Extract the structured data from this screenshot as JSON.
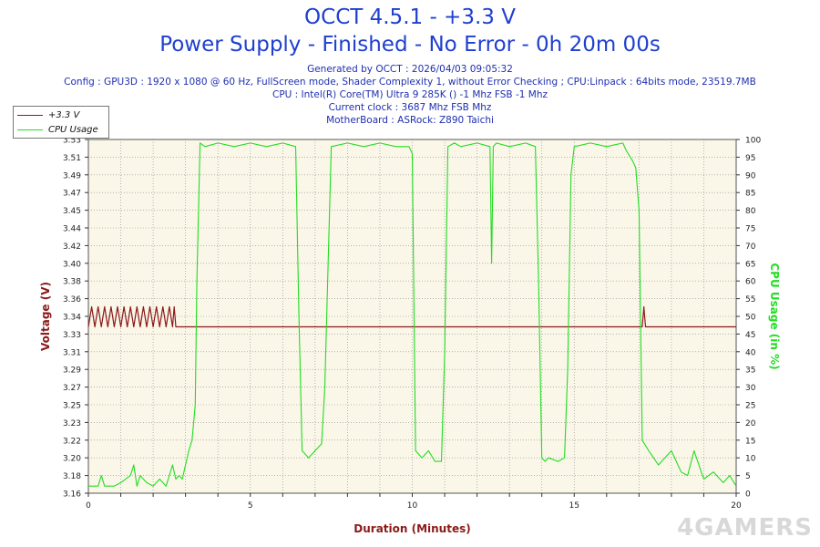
{
  "header": {
    "title": "OCCT 4.5.1 - +3.3 V",
    "subtitle": "Power Supply - Finished - No Error - 0h 20m 00s",
    "info_lines": [
      "Generated by OCCT : 2026/04/03 09:05:32",
      "Config : GPU3D : 1920 x 1080 @ 60 Hz, FullScreen mode, Shader Complexity 1, without Error Checking ; CPU:Linpack : 64bits mode, 23519.7MB",
      "CPU : Intel(R) Core(TM) Ultra 9 285K () -1 Mhz FSB -1 Mhz",
      "Current clock : 3687 Mhz FSB  Mhz",
      "MotherBoard : ASRock: Z890 Taichi"
    ]
  },
  "watermark": "4GAMERS",
  "colors": {
    "voltage": "#8b1a1a",
    "cpu": "#22dd22",
    "plot_bg": "#faf6e8",
    "grid": "#8a8a8a",
    "axis_text": "#222222"
  },
  "chart_data": {
    "type": "line",
    "xlabel": "Duration (Minutes)",
    "ylabel_left": "Voltage (V)",
    "ylabel_right": "CPU Usage (in %)",
    "xlim": [
      0,
      20
    ],
    "ylim_left": [
      3.16,
      3.53
    ],
    "ylim_right": [
      0,
      100
    ],
    "x_ticks": [
      0,
      5,
      10,
      15,
      20
    ],
    "y_left_ticks": [
      "3.16",
      "3.18",
      "3.20",
      "3.22",
      "3.23",
      "3.25",
      "3.27",
      "3.29",
      "3.31",
      "3.33",
      "3.34",
      "3.36",
      "3.38",
      "3.40",
      "3.42",
      "3.44",
      "3.45",
      "3.47",
      "3.49",
      "3.51",
      "3.53"
    ],
    "y_right_ticks": [
      0,
      5,
      10,
      15,
      20,
      25,
      30,
      35,
      40,
      45,
      50,
      55,
      60,
      65,
      70,
      75,
      80,
      85,
      90,
      95,
      100
    ],
    "grid": true,
    "legend_position": "top-left",
    "series": [
      {
        "name": "+3.3 V",
        "color": "#8b1a1a",
        "axis": "left",
        "x": [
          0,
          0.1,
          0.2,
          0.3,
          0.4,
          0.5,
          0.6,
          0.7,
          0.8,
          0.9,
          1.0,
          1.1,
          1.2,
          1.3,
          1.4,
          1.5,
          1.6,
          1.7,
          1.8,
          1.9,
          2.0,
          2.1,
          2.2,
          2.3,
          2.4,
          2.5,
          2.6,
          2.65,
          2.7,
          2.75,
          17.1,
          17.15,
          17.2,
          17.25,
          20
        ],
        "y": [
          3.334,
          3.355,
          3.334,
          3.355,
          3.334,
          3.355,
          3.334,
          3.355,
          3.334,
          3.355,
          3.334,
          3.355,
          3.334,
          3.355,
          3.334,
          3.355,
          3.334,
          3.355,
          3.334,
          3.355,
          3.334,
          3.355,
          3.334,
          3.355,
          3.334,
          3.355,
          3.334,
          3.355,
          3.334,
          3.334,
          3.334,
          3.355,
          3.334,
          3.334,
          3.334
        ]
      },
      {
        "name": "CPU Usage",
        "color": "#22dd22",
        "axis": "right",
        "x": [
          0,
          0.3,
          0.4,
          0.5,
          0.8,
          1.0,
          1.3,
          1.4,
          1.5,
          1.6,
          1.8,
          2.0,
          2.2,
          2.4,
          2.6,
          2.7,
          2.8,
          2.9,
          3.0,
          3.1,
          3.2,
          3.3,
          3.35,
          3.45,
          3.6,
          4.0,
          4.5,
          5.0,
          5.5,
          6.0,
          6.4,
          6.5,
          6.6,
          6.8,
          7.0,
          7.2,
          7.3,
          7.5,
          8.0,
          8.5,
          9.0,
          9.5,
          9.9,
          10.0,
          10.1,
          10.3,
          10.5,
          10.7,
          10.9,
          11.0,
          11.1,
          11.3,
          11.5,
          12.0,
          12.4,
          12.45,
          12.5,
          12.6,
          13.0,
          13.5,
          13.8,
          13.9,
          14.0,
          14.1,
          14.2,
          14.5,
          14.7,
          14.8,
          14.9,
          15.0,
          15.5,
          16.0,
          16.5,
          16.6,
          16.8,
          16.9,
          17.0,
          17.1,
          17.3,
          17.6,
          18.0,
          18.3,
          18.5,
          18.7,
          19.0,
          19.3,
          19.6,
          19.8,
          20.0
        ],
        "y": [
          2,
          2,
          5,
          2,
          2,
          3,
          5,
          8,
          2,
          5,
          3,
          2,
          4,
          2,
          8,
          4,
          5,
          4,
          8,
          12,
          15,
          25,
          60,
          99,
          98,
          99,
          98,
          99,
          98,
          99,
          98,
          50,
          12,
          10,
          12,
          14,
          30,
          98,
          99,
          98,
          99,
          98,
          98,
          96,
          12,
          10,
          12,
          9,
          9,
          40,
          98,
          99,
          98,
          99,
          98,
          65,
          98,
          99,
          98,
          99,
          98,
          60,
          10,
          9,
          10,
          9,
          10,
          35,
          90,
          98,
          99,
          98,
          99,
          97,
          94,
          92,
          80,
          15,
          12,
          8,
          12,
          6,
          5,
          12,
          4,
          6,
          3,
          5,
          2
        ]
      }
    ]
  }
}
